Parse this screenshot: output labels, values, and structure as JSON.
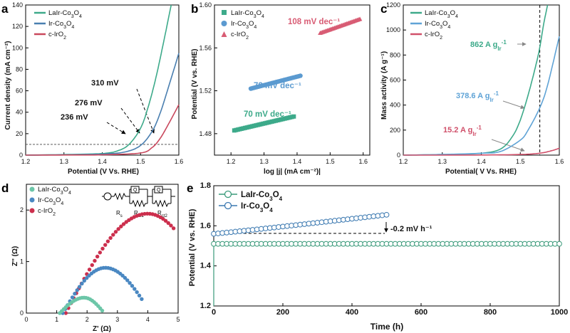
{
  "chart_data": [
    {
      "panel": "a",
      "type": "line",
      "xlabel": "Potential (V Vs. RHE)",
      "ylabel": "Current density (mA cm⁻²)",
      "xlim": [
        1.2,
        1.6
      ],
      "ylim": [
        0,
        140
      ],
      "xticks": [
        "1.2",
        "1.3",
        "1.4",
        "1.5",
        "1.6"
      ],
      "yticks": [
        "0",
        "20",
        "40",
        "60",
        "80",
        "100",
        "120",
        "140"
      ],
      "reference_line_y": 10,
      "series": [
        {
          "name": "LaIr-Co3O4",
          "color": "#3daa8a",
          "x": [
            1.2,
            1.3,
            1.4,
            1.44,
            1.47,
            1.5,
            1.52,
            1.54,
            1.56,
            1.58
          ],
          "y": [
            0,
            0.5,
            1.5,
            4,
            10,
            25,
            45,
            72,
            105,
            140
          ]
        },
        {
          "name": "Ir-Co3O4",
          "color": "#4a7fb0",
          "x": [
            1.2,
            1.3,
            1.4,
            1.46,
            1.5,
            1.53,
            1.55,
            1.57,
            1.6
          ],
          "y": [
            0,
            0.3,
            1,
            3,
            9,
            22,
            38,
            60,
            95
          ]
        },
        {
          "name": "c-IrO2",
          "color": "#c9485d",
          "x": [
            1.2,
            1.3,
            1.4,
            1.5,
            1.53,
            1.55,
            1.57,
            1.6
          ],
          "y": [
            0,
            0.1,
            0.3,
            2,
            7,
            15,
            27,
            47
          ]
        }
      ],
      "annotations": [
        "236 mV",
        "276 mV",
        "310 mV"
      ]
    },
    {
      "panel": "b",
      "type": "scatter",
      "xlabel": "log |j| (mA cm⁻²)|",
      "ylabel": "Potential (V vs. RHE)",
      "xlim": [
        1.15,
        1.62
      ],
      "ylim": [
        1.46,
        1.6
      ],
      "xticks": [
        "1.2",
        "1.3",
        "1.4",
        "1.5",
        "1.6"
      ],
      "yticks": [
        "1.48",
        "1.52",
        "1.56",
        "1.60"
      ],
      "series": [
        {
          "name": "LaIr-Co3O4",
          "color": "#3daa8a",
          "marker": "square",
          "x_range": [
            1.21,
            1.39
          ],
          "y_range": [
            1.483,
            1.496
          ],
          "tafel": "70 mV dec⁻¹"
        },
        {
          "name": "Ir-Co3O4",
          "color": "#5b9ad0",
          "marker": "circle",
          "x_range": [
            1.26,
            1.41
          ],
          "y_range": [
            1.522,
            1.534
          ],
          "tafel": "78 mV dec⁻¹"
        },
        {
          "name": "c-IrO2",
          "color": "#d85c74",
          "marker": "triangle",
          "x_range": [
            1.47,
            1.59
          ],
          "y_range": [
            1.574,
            1.587
          ],
          "tafel": "108 mV dec⁻¹"
        }
      ]
    },
    {
      "panel": "c",
      "type": "line",
      "xlabel": "Potential( V Vs. RHE)",
      "ylabel": "Mass activity (A g⁻¹)",
      "xlim": [
        1.2,
        1.6
      ],
      "ylim": [
        0,
        1200
      ],
      "xticks": [
        "1.2",
        "1.3",
        "1.4",
        "1.5",
        "1.6"
      ],
      "yticks": [
        "0",
        "200",
        "400",
        "600",
        "800",
        "1000",
        "1200"
      ],
      "reference_line_x": 1.55,
      "series": [
        {
          "name": "LaIr-Co3O4",
          "color": "#3daa8a",
          "x": [
            1.2,
            1.3,
            1.4,
            1.45,
            1.48,
            1.5,
            1.52,
            1.54,
            1.55,
            1.56,
            1.57
          ],
          "y": [
            0,
            5,
            15,
            50,
            150,
            280,
            480,
            720,
            862,
            1050,
            1200
          ]
        },
        {
          "name": "Ir-Co3O4",
          "color": "#5fa3d6",
          "x": [
            1.2,
            1.3,
            1.4,
            1.45,
            1.5,
            1.52,
            1.55,
            1.57,
            1.6
          ],
          "y": [
            0,
            5,
            15,
            30,
            120,
            200,
            378.6,
            560,
            950
          ]
        },
        {
          "name": "c-IrO2",
          "color": "#d0506a",
          "x": [
            1.2,
            1.4,
            1.5,
            1.55,
            1.58,
            1.6
          ],
          "y": [
            0,
            1,
            5,
            15.2,
            35,
            55
          ]
        }
      ],
      "annotations": [
        "862 A g",
        "378.6 A g",
        "15.2 A g"
      ],
      "annotation_subscript": "Ir",
      "annotation_superscript": "-1"
    },
    {
      "panel": "d",
      "type": "scatter",
      "xlabel": "Z' (Ω)",
      "ylabel": "Z'' (Ω)",
      "xlim": [
        0,
        5
      ],
      "ylim": [
        0,
        2.5
      ],
      "xticks": [
        "0",
        "1",
        "2",
        "3",
        "4",
        "5"
      ],
      "yticks": [
        "0",
        "1",
        "2"
      ],
      "series": [
        {
          "name": "LaIr-Co3O4",
          "color": "#6cc6a8",
          "arc": {
            "x_start": 1.1,
            "x_end": 2.5,
            "peak_x": 1.9,
            "peak_y": 0.3
          }
        },
        {
          "name": "Ir-Co3O4",
          "color": "#4a88c2",
          "arc": {
            "x_start": 1.2,
            "x_end": 3.8,
            "peak_x": 2.6,
            "peak_y": 0.88
          }
        },
        {
          "name": "c-IrO2",
          "color": "#cc2f4d",
          "arc": {
            "x_start": 1.3,
            "x_end": 4.85,
            "peak_x": 4.0,
            "peak_y": 1.93
          }
        }
      ],
      "circuit_labels": [
        "R",
        "s",
        "R",
        "ct1",
        "R",
        "ct2",
        "Q",
        "Q"
      ]
    },
    {
      "panel": "e",
      "type": "scatter",
      "xlabel": "Time (h)",
      "ylabel": "Potential (V vs. RHE)",
      "xlim": [
        0,
        1000
      ],
      "ylim": [
        1.2,
        1.8
      ],
      "xticks": [
        "0",
        "200",
        "400",
        "600",
        "800",
        "1000"
      ],
      "yticks": [
        "1.2",
        "1.4",
        "1.6",
        "1.8"
      ],
      "series": [
        {
          "name": "LaIr-Co3O4",
          "color": "#3a9a7a",
          "x_range": [
            0,
            1000
          ],
          "y": 1.51
        },
        {
          "name": "Ir-Co3O4",
          "color": "#3a78b0",
          "x_range": [
            0,
            500
          ],
          "y_start": 1.56,
          "y_end": 1.655
        }
      ],
      "annotation": "-0.2 mV h⁻¹"
    }
  ],
  "panel_labels": [
    "a",
    "b",
    "c",
    "d",
    "e"
  ],
  "subscripts": {
    "co": "3",
    "o": "4",
    "o2": "2"
  }
}
